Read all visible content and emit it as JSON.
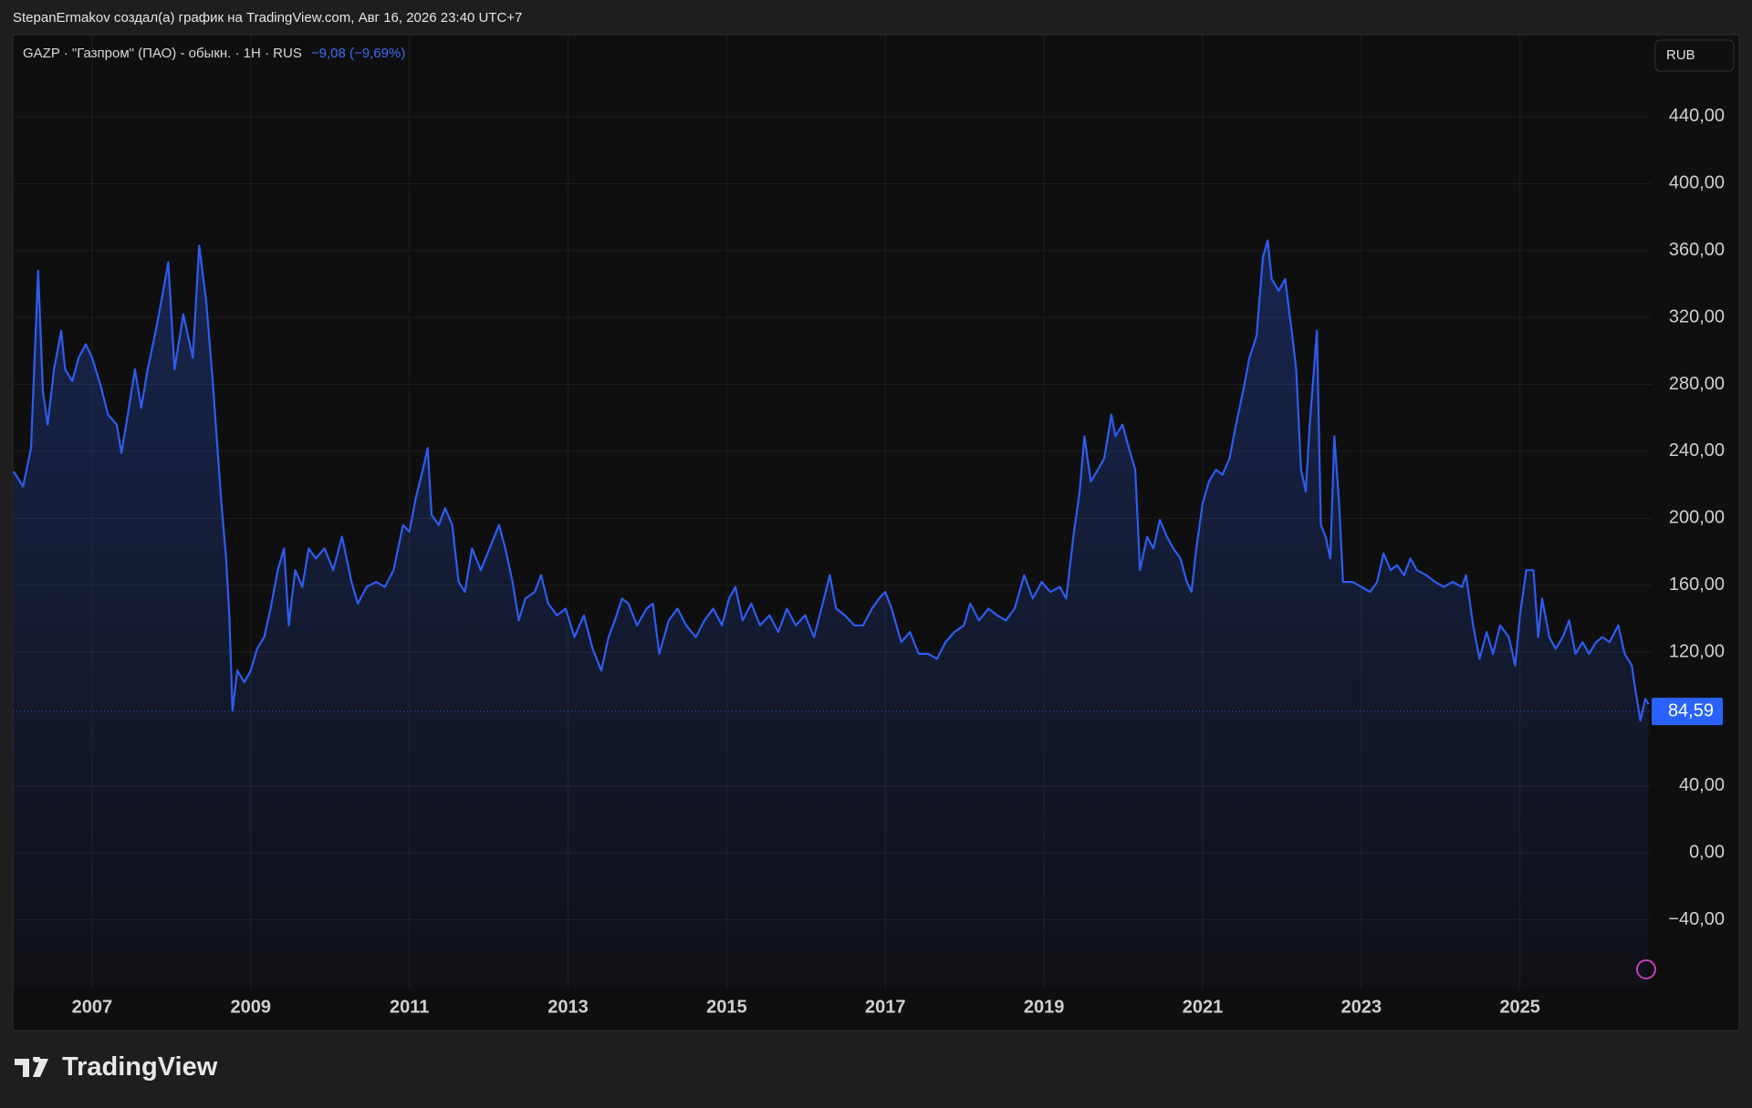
{
  "header": {
    "attribution": "StepanErmakov создал(а) график на TradingView.com, Авг 16, 2026 23:40 UTC+7",
    "currency": "RUB"
  },
  "chart_data": {
    "type": "line",
    "change": "−9,08 (−9,69%)",
    "x": [
      2006.01,
      2006.13,
      2006.23,
      2006.32,
      2006.38,
      2006.44,
      2006.52,
      2006.61,
      2006.66,
      2006.75,
      2006.83,
      2006.92,
      2007.0,
      2007.11,
      2007.2,
      2007.31,
      2007.37,
      2007.45,
      2007.54,
      2007.62,
      2007.7,
      2007.79,
      2007.87,
      2007.96,
      2008.04,
      2008.15,
      2008.27,
      2008.35,
      2008.44,
      2008.52,
      2008.58,
      2008.63,
      2008.69,
      2008.73,
      2008.77,
      2008.83,
      2008.92,
      2009.0,
      2009.08,
      2009.17,
      2009.25,
      2009.34,
      2009.42,
      2009.48,
      2009.56,
      2009.65,
      2009.73,
      2009.82,
      2009.93,
      2010.04,
      2010.15,
      2010.27,
      2010.35,
      2010.46,
      2010.58,
      2010.69,
      2010.8,
      2010.92,
      2011.0,
      2011.08,
      2011.17,
      2011.23,
      2011.28,
      2011.37,
      2011.45,
      2011.54,
      2011.62,
      2011.7,
      2011.79,
      2011.9,
      2012.01,
      2012.13,
      2012.21,
      2012.3,
      2012.38,
      2012.46,
      2012.58,
      2012.66,
      2012.75,
      2012.86,
      2012.97,
      2013.08,
      2013.2,
      2013.31,
      2013.42,
      2013.51,
      2013.59,
      2013.68,
      2013.76,
      2013.87,
      2013.99,
      2014.07,
      2014.15,
      2014.27,
      2014.38,
      2014.49,
      2014.61,
      2014.72,
      2014.83,
      2014.94,
      2015.03,
      2015.11,
      2015.2,
      2015.31,
      2015.42,
      2015.54,
      2015.65,
      2015.76,
      2015.87,
      2015.99,
      2016.1,
      2016.21,
      2016.3,
      2016.38,
      2016.49,
      2016.61,
      2016.72,
      2016.83,
      2016.92,
      2017.0,
      2017.08,
      2017.2,
      2017.31,
      2017.42,
      2017.54,
      2017.65,
      2017.76,
      2017.87,
      2017.99,
      2018.07,
      2018.18,
      2018.3,
      2018.41,
      2018.52,
      2018.63,
      2018.75,
      2018.86,
      2018.97,
      2019.08,
      2019.2,
      2019.28,
      2019.37,
      2019.45,
      2019.51,
      2019.59,
      2019.68,
      2019.76,
      2019.85,
      2019.9,
      2019.99,
      2020.07,
      2020.15,
      2020.21,
      2020.3,
      2020.38,
      2020.46,
      2020.55,
      2020.63,
      2020.72,
      2020.8,
      2020.86,
      2020.92,
      2021.0,
      2021.08,
      2021.17,
      2021.25,
      2021.34,
      2021.42,
      2021.51,
      2021.59,
      2021.68,
      2021.76,
      2021.82,
      2021.87,
      2021.96,
      2022.04,
      2022.13,
      2022.18,
      2022.24,
      2022.3,
      2022.35,
      2022.44,
      2022.49,
      2022.55,
      2022.61,
      2022.66,
      2022.72,
      2022.77,
      2022.89,
      2023.0,
      2023.11,
      2023.2,
      2023.28,
      2023.37,
      2023.45,
      2023.54,
      2023.62,
      2023.7,
      2023.82,
      2023.93,
      2024.04,
      2024.15,
      2024.27,
      2024.32,
      2024.41,
      2024.49,
      2024.58,
      2024.66,
      2024.75,
      2024.86,
      2024.94,
      2025.0,
      2025.08,
      2025.17,
      2025.23,
      2025.28,
      2025.37,
      2025.45,
      2025.54,
      2025.62,
      2025.7,
      2025.79,
      2025.87,
      2025.96,
      2026.04,
      2026.13,
      2026.24,
      2026.32,
      2026.41,
      2026.46,
      2026.52,
      2026.58,
      2026.62
    ],
    "series": [
      {
        "name": "GAZP · \"Газпром\" (ПАО) - обыкн. · 1Н · RUS",
        "color": "#2f5cf0",
        "values": [
          228,
          219,
          242,
          348,
          276,
          256,
          289,
          312,
          289,
          282,
          296,
          304,
          296,
          279,
          262,
          256,
          239,
          262,
          289,
          266,
          289,
          309,
          329,
          353,
          289,
          322,
          296,
          363,
          329,
          282,
          242,
          209,
          176,
          142,
          85,
          109,
          102,
          109,
          122,
          129,
          146,
          169,
          182,
          136,
          169,
          159,
          182,
          176,
          182,
          169,
          189,
          162,
          149,
          159,
          162,
          159,
          169,
          196,
          192,
          212,
          229,
          242,
          202,
          196,
          206,
          196,
          162,
          156,
          182,
          169,
          182,
          196,
          182,
          162,
          139,
          152,
          156,
          166,
          149,
          142,
          146,
          129,
          142,
          122,
          109,
          129,
          139,
          152,
          149,
          136,
          146,
          149,
          119,
          139,
          146,
          136,
          129,
          139,
          146,
          136,
          152,
          159,
          139,
          149,
          136,
          142,
          132,
          146,
          136,
          142,
          129,
          149,
          166,
          146,
          142,
          136,
          136,
          146,
          152,
          156,
          146,
          126,
          132,
          119,
          119,
          116,
          126,
          132,
          136,
          149,
          139,
          146,
          142,
          139,
          146,
          166,
          152,
          162,
          156,
          159,
          152,
          189,
          216,
          249,
          222,
          229,
          236,
          262,
          249,
          256,
          242,
          229,
          169,
          189,
          182,
          199,
          189,
          182,
          176,
          162,
          156,
          182,
          209,
          222,
          229,
          226,
          236,
          256,
          276,
          296,
          309,
          356,
          366,
          343,
          336,
          343,
          309,
          289,
          229,
          216,
          256,
          312,
          196,
          189,
          176,
          249,
          209,
          162,
          162,
          159,
          156,
          162,
          179,
          169,
          172,
          166,
          176,
          169,
          166,
          162,
          159,
          162,
          159,
          166,
          136,
          116,
          132,
          119,
          136,
          129,
          112,
          142,
          169,
          169,
          129,
          152,
          129,
          122,
          129,
          139,
          119,
          126,
          119,
          126,
          129,
          126,
          136,
          119,
          112,
          96,
          79,
          92,
          89
        ]
      }
    ],
    "price_line": {
      "value": 84.59,
      "label": "84,59"
    },
    "xlim": [
      2006.0,
      2026.66
    ],
    "xticks": [
      2007,
      2009,
      2011,
      2013,
      2015,
      2017,
      2019,
      2021,
      2023,
      2025
    ],
    "ylim": [
      -81,
      489
    ],
    "yticks": [
      {
        "value": -40,
        "label": "−40,00"
      },
      {
        "value": 0,
        "label": "0,00"
      },
      {
        "value": 40,
        "label": "40,00"
      },
      {
        "value": 120,
        "label": "120,00"
      },
      {
        "value": 160,
        "label": "160,00"
      },
      {
        "value": 200,
        "label": "200,00"
      },
      {
        "value": 240,
        "label": "240,00"
      },
      {
        "value": 280,
        "label": "280,00"
      },
      {
        "value": 320,
        "label": "320,00"
      },
      {
        "value": 360,
        "label": "360,00"
      },
      {
        "value": 400,
        "label": "400,00"
      },
      {
        "value": 440,
        "label": "440,00"
      }
    ],
    "grid": true
  },
  "footer": {
    "logo": "TradingView"
  }
}
